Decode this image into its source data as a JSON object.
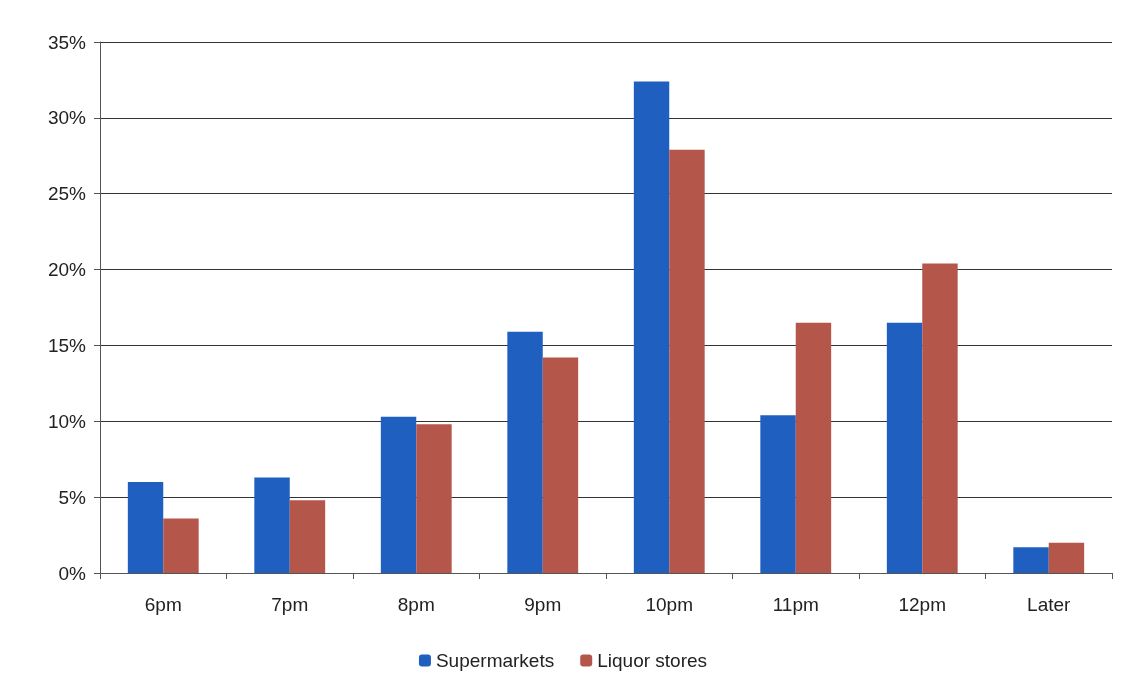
{
  "chart_data": {
    "type": "bar",
    "categories": [
      "6pm",
      "7pm",
      "8pm",
      "9pm",
      "10pm",
      "11pm",
      "12pm",
      "Later"
    ],
    "series": [
      {
        "name": "Supermarkets",
        "color": "#1f5fbf",
        "values": [
          6.0,
          6.3,
          10.3,
          15.9,
          32.4,
          10.4,
          16.5,
          1.7
        ]
      },
      {
        "name": "Liquor stores",
        "color": "#b5564b",
        "values": [
          3.6,
          4.8,
          9.8,
          14.2,
          27.9,
          16.5,
          20.4,
          2.0
        ]
      }
    ],
    "ylim": [
      0,
      35
    ],
    "yticks": [
      {
        "value": 0,
        "label": "0%"
      },
      {
        "value": 5,
        "label": "5%"
      },
      {
        "value": 10,
        "label": "10%"
      },
      {
        "value": 15,
        "label": "15%"
      },
      {
        "value": 20,
        "label": "20%"
      },
      {
        "value": 25,
        "label": "25%"
      },
      {
        "value": 30,
        "label": "30%"
      },
      {
        "value": 35,
        "label": "35%"
      }
    ],
    "grid": "y",
    "legend": "bottom"
  }
}
